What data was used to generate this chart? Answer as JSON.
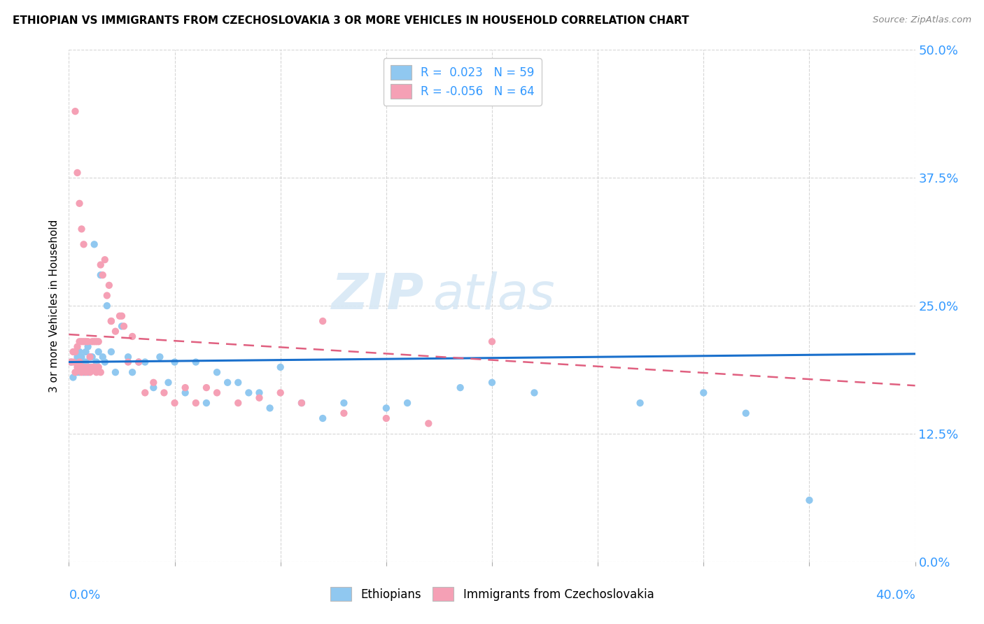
{
  "title": "ETHIOPIAN VS IMMIGRANTS FROM CZECHOSLOVAKIA 3 OR MORE VEHICLES IN HOUSEHOLD CORRELATION CHART",
  "source": "Source: ZipAtlas.com",
  "ylabel_label": "3 or more Vehicles in Household",
  "legend_label1": "Ethiopians",
  "legend_label2": "Immigrants from Czechoslovakia",
  "R1": 0.023,
  "N1": 59,
  "R2": -0.056,
  "N2": 64,
  "color_blue": "#90C8F0",
  "color_pink": "#F5A0B5",
  "xmin": 0.0,
  "xmax": 0.4,
  "ymin": 0.0,
  "ymax": 0.5,
  "blue_line_y0": 0.195,
  "blue_line_y1": 0.203,
  "pink_line_y0": 0.222,
  "pink_line_y1": 0.172,
  "blue_scatter_x": [
    0.001,
    0.002,
    0.003,
    0.003,
    0.004,
    0.004,
    0.005,
    0.005,
    0.006,
    0.006,
    0.007,
    0.007,
    0.008,
    0.008,
    0.009,
    0.009,
    0.01,
    0.01,
    0.011,
    0.012,
    0.013,
    0.014,
    0.015,
    0.016,
    0.017,
    0.018,
    0.02,
    0.022,
    0.025,
    0.028,
    0.03,
    0.033,
    0.036,
    0.04,
    0.043,
    0.047,
    0.05,
    0.055,
    0.06,
    0.065,
    0.07,
    0.075,
    0.08,
    0.085,
    0.09,
    0.095,
    0.1,
    0.11,
    0.12,
    0.13,
    0.15,
    0.16,
    0.185,
    0.2,
    0.22,
    0.27,
    0.3,
    0.32,
    0.35
  ],
  "blue_scatter_y": [
    0.195,
    0.18,
    0.195,
    0.205,
    0.185,
    0.2,
    0.185,
    0.205,
    0.19,
    0.2,
    0.185,
    0.195,
    0.195,
    0.205,
    0.185,
    0.21,
    0.19,
    0.2,
    0.2,
    0.31,
    0.195,
    0.205,
    0.28,
    0.2,
    0.195,
    0.25,
    0.205,
    0.185,
    0.23,
    0.2,
    0.185,
    0.195,
    0.195,
    0.17,
    0.2,
    0.175,
    0.195,
    0.165,
    0.195,
    0.155,
    0.185,
    0.175,
    0.175,
    0.165,
    0.165,
    0.15,
    0.19,
    0.155,
    0.14,
    0.155,
    0.15,
    0.155,
    0.17,
    0.175,
    0.165,
    0.155,
    0.165,
    0.145,
    0.06
  ],
  "pink_scatter_x": [
    0.001,
    0.002,
    0.002,
    0.003,
    0.003,
    0.004,
    0.004,
    0.005,
    0.005,
    0.006,
    0.006,
    0.007,
    0.007,
    0.008,
    0.008,
    0.009,
    0.009,
    0.01,
    0.01,
    0.011,
    0.011,
    0.012,
    0.012,
    0.013,
    0.013,
    0.014,
    0.014,
    0.015,
    0.015,
    0.016,
    0.017,
    0.018,
    0.019,
    0.02,
    0.022,
    0.024,
    0.026,
    0.028,
    0.03,
    0.033,
    0.036,
    0.04,
    0.045,
    0.05,
    0.055,
    0.06,
    0.065,
    0.07,
    0.08,
    0.09,
    0.1,
    0.11,
    0.13,
    0.15,
    0.17,
    0.2,
    0.003,
    0.004,
    0.005,
    0.006,
    0.007,
    0.02,
    0.025,
    0.12
  ],
  "pink_scatter_y": [
    0.195,
    0.195,
    0.205,
    0.185,
    0.205,
    0.19,
    0.21,
    0.195,
    0.215,
    0.185,
    0.215,
    0.19,
    0.215,
    0.185,
    0.215,
    0.19,
    0.215,
    0.185,
    0.2,
    0.19,
    0.215,
    0.19,
    0.215,
    0.185,
    0.215,
    0.19,
    0.215,
    0.185,
    0.29,
    0.28,
    0.295,
    0.26,
    0.27,
    0.235,
    0.225,
    0.24,
    0.23,
    0.195,
    0.22,
    0.195,
    0.165,
    0.175,
    0.165,
    0.155,
    0.17,
    0.155,
    0.17,
    0.165,
    0.155,
    0.16,
    0.165,
    0.155,
    0.145,
    0.14,
    0.135,
    0.215,
    0.44,
    0.38,
    0.35,
    0.325,
    0.31,
    0.235,
    0.24,
    0.235
  ]
}
